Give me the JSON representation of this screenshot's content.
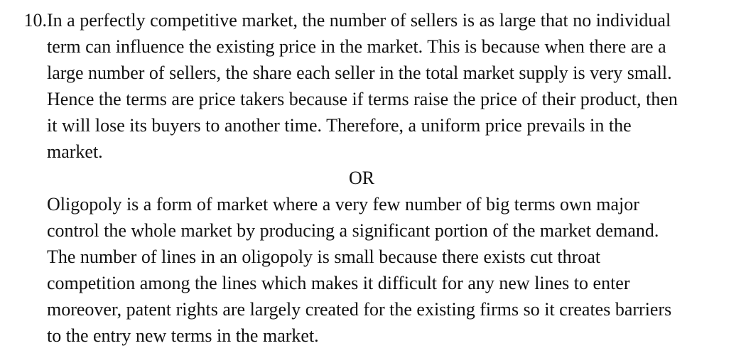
{
  "question": {
    "number": "10.",
    "answer_lines": [
      "In a perfectly competitive market, the number of sellers is as large that no individual",
      "term can influence the existing price in the market. This is because when there are a",
      "large number of sellers, the share each seller in the total market supply is very small.",
      "Hence the terms are price takers because if terms raise the price of their product, then",
      "it will lose its buyers to another time. Therefore, a uniform price prevails in the",
      "market."
    ],
    "or_label": "OR",
    "alt_answer_lines": [
      "Oligopoly is a form of market where a very few number of big terms own major",
      "control the whole market by producing a significant portion of the market demand.",
      "The number of lines in an oligopoly is small because there exists cut throat",
      "competition among the lines which makes it difficult for any new lines to enter",
      "moreover, patent rights are largely created for the existing firms so it creates barriers",
      "to the entry new terms in the market."
    ]
  }
}
